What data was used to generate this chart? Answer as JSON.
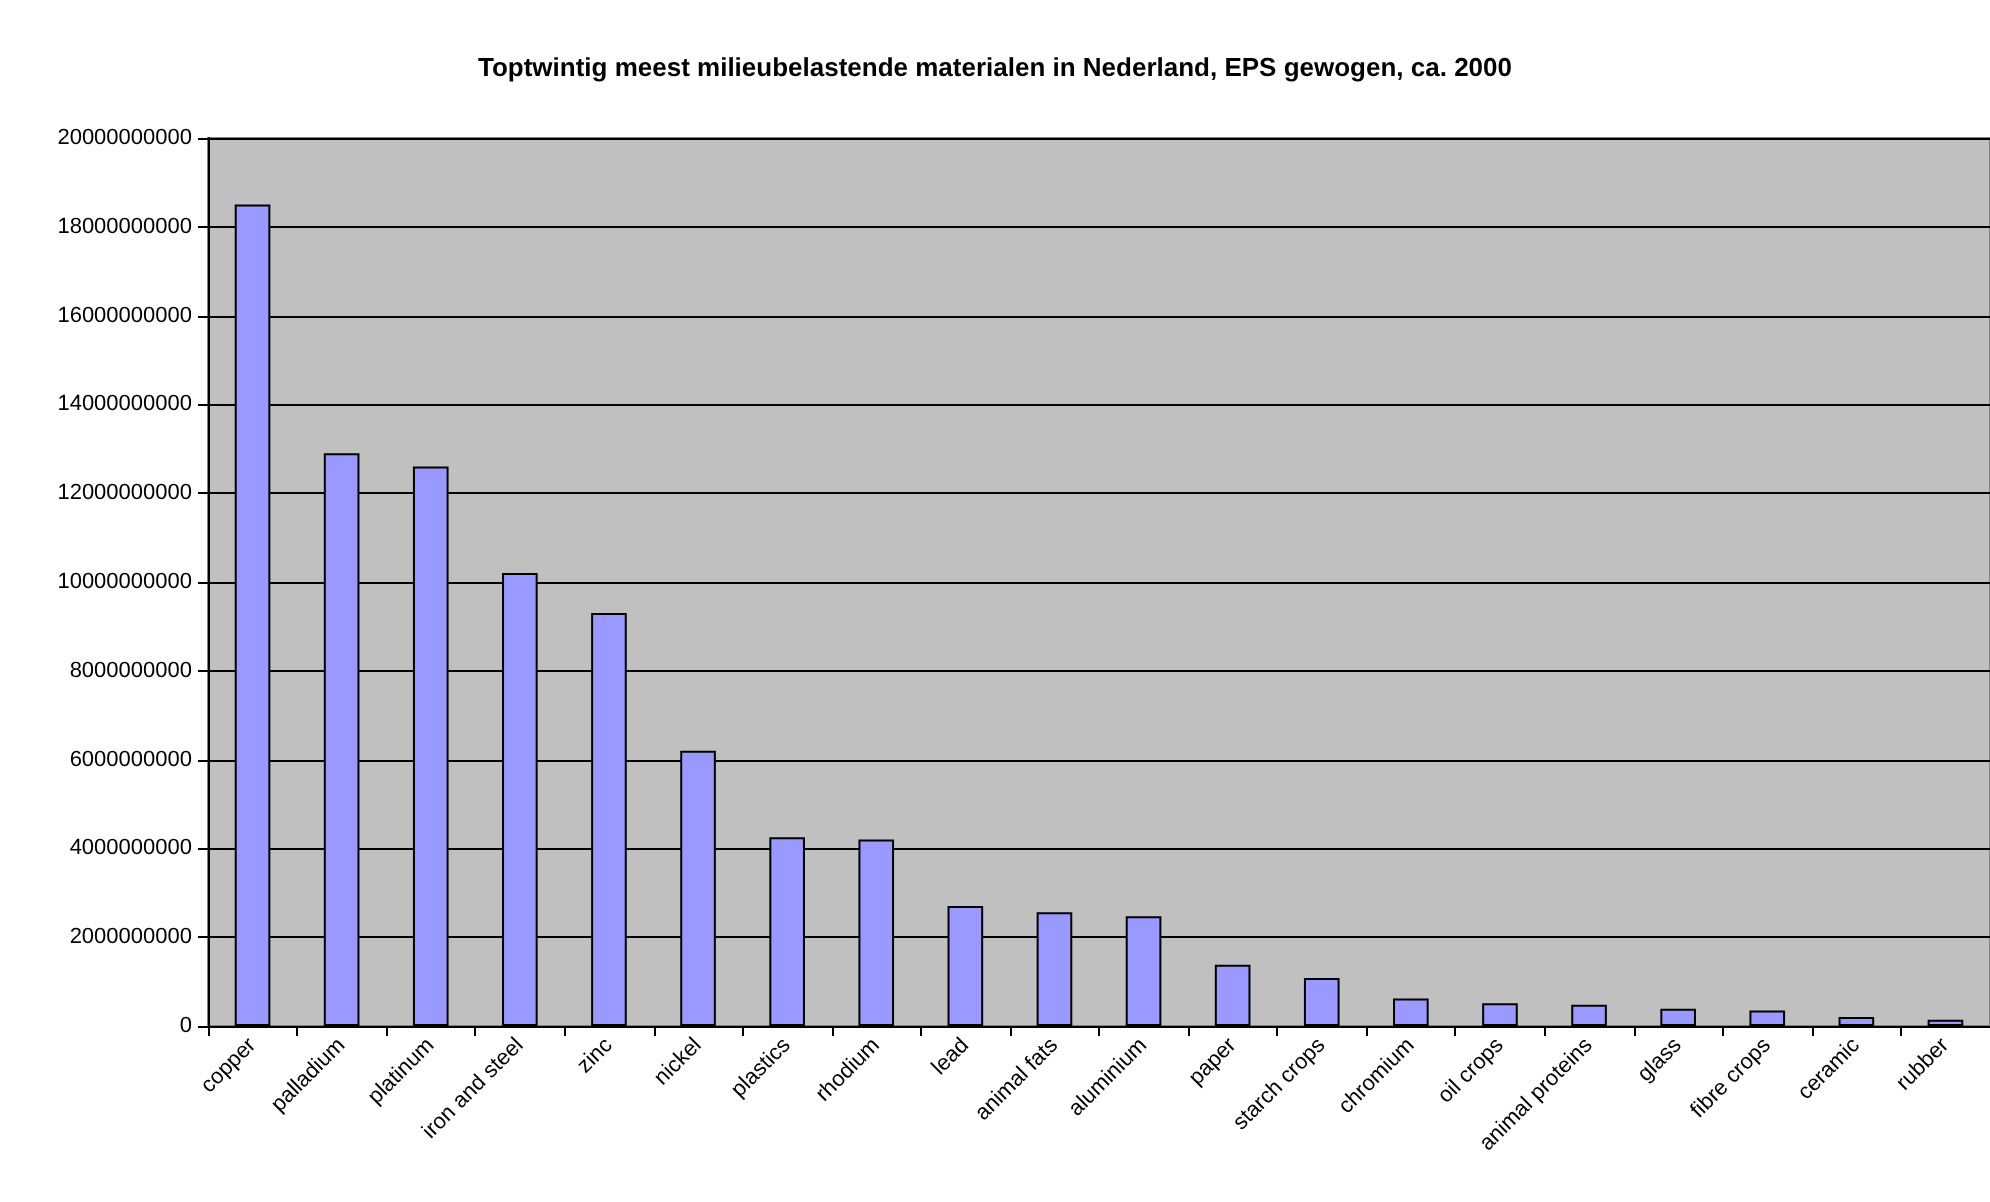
{
  "chart_data": {
    "type": "bar",
    "title": "Toptwintig meest milieubelastende materialen in Nederland, EPS gewogen, ca. 2000",
    "categories": [
      "copper",
      "palladium",
      "platinum",
      "iron and steel",
      "zinc",
      "nickel",
      "plastics",
      "rhodium",
      "lead",
      "animal fats",
      "aluminium",
      "paper",
      "starch crops",
      "chromium",
      "oil crops",
      "animal proteins",
      "glass",
      "fibre crops",
      "ceramic",
      "rubber"
    ],
    "values": [
      18500000000,
      12900000000,
      12600000000,
      10200000000,
      9300000000,
      6200000000,
      4250000000,
      4200000000,
      2700000000,
      2560000000,
      2470000000,
      1380000000,
      1080000000,
      620000000,
      510000000,
      480000000,
      390000000,
      350000000,
      200000000,
      140000000
    ],
    "color": "#9999ff",
    "ylim": [
      0,
      20000000000
    ],
    "yticks": [
      0,
      2000000000,
      4000000000,
      6000000000,
      8000000000,
      10000000000,
      12000000000,
      14000000000,
      16000000000,
      18000000000,
      20000000000
    ],
    "grid": "y"
  }
}
